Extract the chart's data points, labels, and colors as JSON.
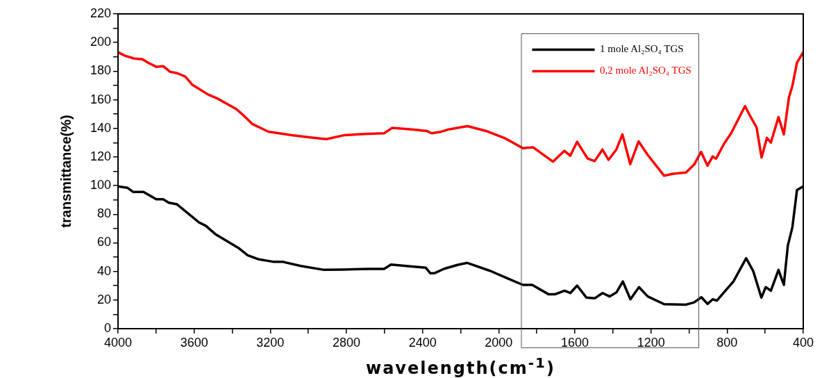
{
  "chart_data": {
    "type": "line",
    "xlabel": "wavelength(cm$^{-1}$)",
    "ylabel": "transmittance(%)",
    "xlim": [
      4000,
      400
    ],
    "xticks": [
      4000,
      {
        "value": 3800,
        "label": null
      },
      3600,
      {
        "value": 3400,
        "label": null
      },
      3200,
      {
        "value": 3000,
        "label": null
      },
      2800,
      {
        "value": 2600,
        "label": null
      },
      2400,
      {
        "value": 2200,
        "label": null
      },
      2000,
      {
        "value": 1800,
        "label": null
      },
      1600,
      {
        "value": 1400,
        "label": null
      },
      1200,
      {
        "value": 1000,
        "label": null
      },
      800,
      {
        "value": 600,
        "label": null
      },
      400
    ],
    "ylim": [
      0,
      220
    ],
    "yticks": [
      0,
      {
        "value": 10,
        "label": null
      },
      20,
      {
        "value": 30,
        "label": null
      },
      40,
      {
        "value": 50,
        "label": null
      },
      60,
      {
        "value": 70,
        "label": null
      },
      80,
      {
        "value": 90,
        "label": null
      },
      100,
      {
        "value": 110,
        "label": null
      },
      120,
      {
        "value": 130,
        "label": null
      },
      140,
      {
        "value": 150,
        "label": null
      },
      160,
      {
        "value": 170,
        "label": null
      },
      180,
      {
        "value": 190,
        "label": null
      },
      200,
      {
        "value": 210,
        "label": null
      },
      220
    ],
    "grid": false,
    "legend": "top right",
    "marker": "none",
    "line_style": "solid",
    "series": [
      {
        "name": "1 mole Al₂SO₄ TGS",
        "color": "#000000",
        "x": [
          4000,
          3951,
          3921,
          3866,
          3799,
          3763,
          3733,
          3690,
          3611,
          3575,
          3538,
          3490,
          3429,
          3368,
          3319,
          3259,
          3186,
          3137,
          3040,
          2918,
          2821,
          2724,
          2676,
          2602,
          2566,
          2457,
          2383,
          2359,
          2335,
          2286,
          2213,
          2165,
          2043,
          1958,
          1873,
          1824,
          1739,
          1703,
          1654,
          1624,
          1588,
          1539,
          1496,
          1454,
          1418,
          1381,
          1348,
          1308,
          1263,
          1217,
          1131,
          1016,
          973,
          935,
          903,
          876,
          854,
          767,
          700,
          663,
          620,
          597,
          570,
          530,
          502,
          481,
          457,
          433,
          400
        ],
        "values": [
          99.4,
          98.5,
          95.6,
          95.6,
          90.4,
          90.4,
          88,
          86.9,
          78.3,
          74.3,
          71.8,
          66.2,
          61.3,
          56.5,
          51.3,
          48.4,
          46.8,
          46.8,
          43.8,
          41.1,
          41.3,
          41.6,
          41.8,
          41.8,
          44.8,
          43.5,
          42.6,
          38.7,
          38.9,
          41.9,
          44.7,
          46,
          40.3,
          35.4,
          30.6,
          30.6,
          24.1,
          24.1,
          26.5,
          24.9,
          30.1,
          21.7,
          21.2,
          24.9,
          22.5,
          25.4,
          33,
          20.5,
          29,
          22.5,
          17.1,
          16.8,
          18.4,
          22,
          17.3,
          20.5,
          19.6,
          33,
          49.2,
          40.3,
          21.7,
          29,
          26.5,
          41.1,
          30.6,
          58.1,
          71,
          96.9,
          99.4
        ]
      },
      {
        "name": "0,2 mole Al₂SO₄ TGS",
        "color": "#ff0000",
        "x": [
          4000,
          3964,
          3915,
          3872,
          3842,
          3799,
          3763,
          3726,
          3690,
          3647,
          3611,
          3526,
          3477,
          3380,
          3344,
          3295,
          3210,
          3088,
          2991,
          2906,
          2809,
          2700,
          2602,
          2560,
          2457,
          2378,
          2353,
          2310,
          2262,
          2164,
          2067,
          1970,
          1874,
          1820,
          1715,
          1655,
          1624,
          1588,
          1533,
          1496,
          1455,
          1423,
          1382,
          1350,
          1309,
          1265,
          1217,
          1131,
          1083,
          1016,
          973,
          937,
          903,
          876,
          858,
          816,
          779,
          706,
          676,
          645,
          619,
          591,
          570,
          530,
          502,
          475,
          457,
          433,
          400
        ],
        "values": [
          193.2,
          190.8,
          188.8,
          188.3,
          185.9,
          183,
          183.5,
          179.5,
          178.6,
          176.2,
          170.6,
          163.6,
          160.8,
          153.6,
          149.5,
          143.1,
          137.7,
          135.3,
          133.7,
          132.5,
          135.3,
          136.1,
          136.6,
          140.3,
          139.3,
          138.2,
          136.6,
          137.4,
          139.3,
          141.6,
          138.2,
          133.3,
          126.2,
          126.8,
          116.7,
          124.3,
          120.9,
          130.6,
          118.9,
          117.1,
          125.2,
          118,
          125.2,
          135.8,
          115,
          130.9,
          121.4,
          106.9,
          108.3,
          109.1,
          114.7,
          123.6,
          113.9,
          120.4,
          118.8,
          129.3,
          136.6,
          155.5,
          147.9,
          140.6,
          119.6,
          133.3,
          130.1,
          147.9,
          135.8,
          161.7,
          169.8,
          185.9,
          193.2
        ]
      }
    ]
  }
}
